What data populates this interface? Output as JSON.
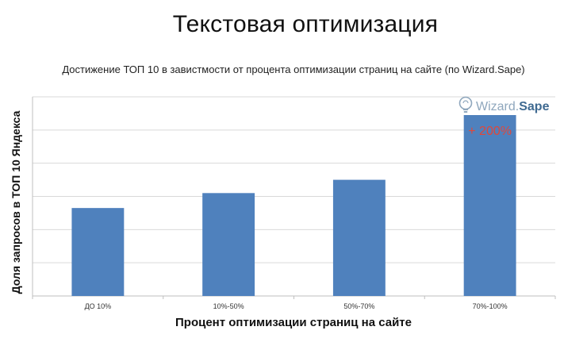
{
  "slide": {
    "title": "Текстовая оптимизация"
  },
  "watermark": {
    "part1": "Wizard.",
    "part2": "Sape"
  },
  "colors": {
    "bar": "#4f81bd",
    "annotation": "#e0473a",
    "grid": "#d9d9d9",
    "axis": "#bfbfbf"
  },
  "chart_data": {
    "type": "bar",
    "title": "Достижение ТОП 10 в завистмости от процента оптимизации страниц на сайте (по Wizard.Sape)",
    "xlabel": "Процент оптимизации страниц на сайте",
    "ylabel": "Доля запросов в ТОП 10 Яндекса",
    "categories": [
      "ДО 10%",
      "10%-50%",
      "50%-70%",
      "70%-100%"
    ],
    "values": [
      2.65,
      3.1,
      3.5,
      5.45
    ],
    "ylim": [
      0,
      6
    ],
    "grid": true,
    "y_ticks_shown": false,
    "annotations": [
      {
        "category": "70%-100%",
        "text": "+ 200%"
      }
    ]
  }
}
